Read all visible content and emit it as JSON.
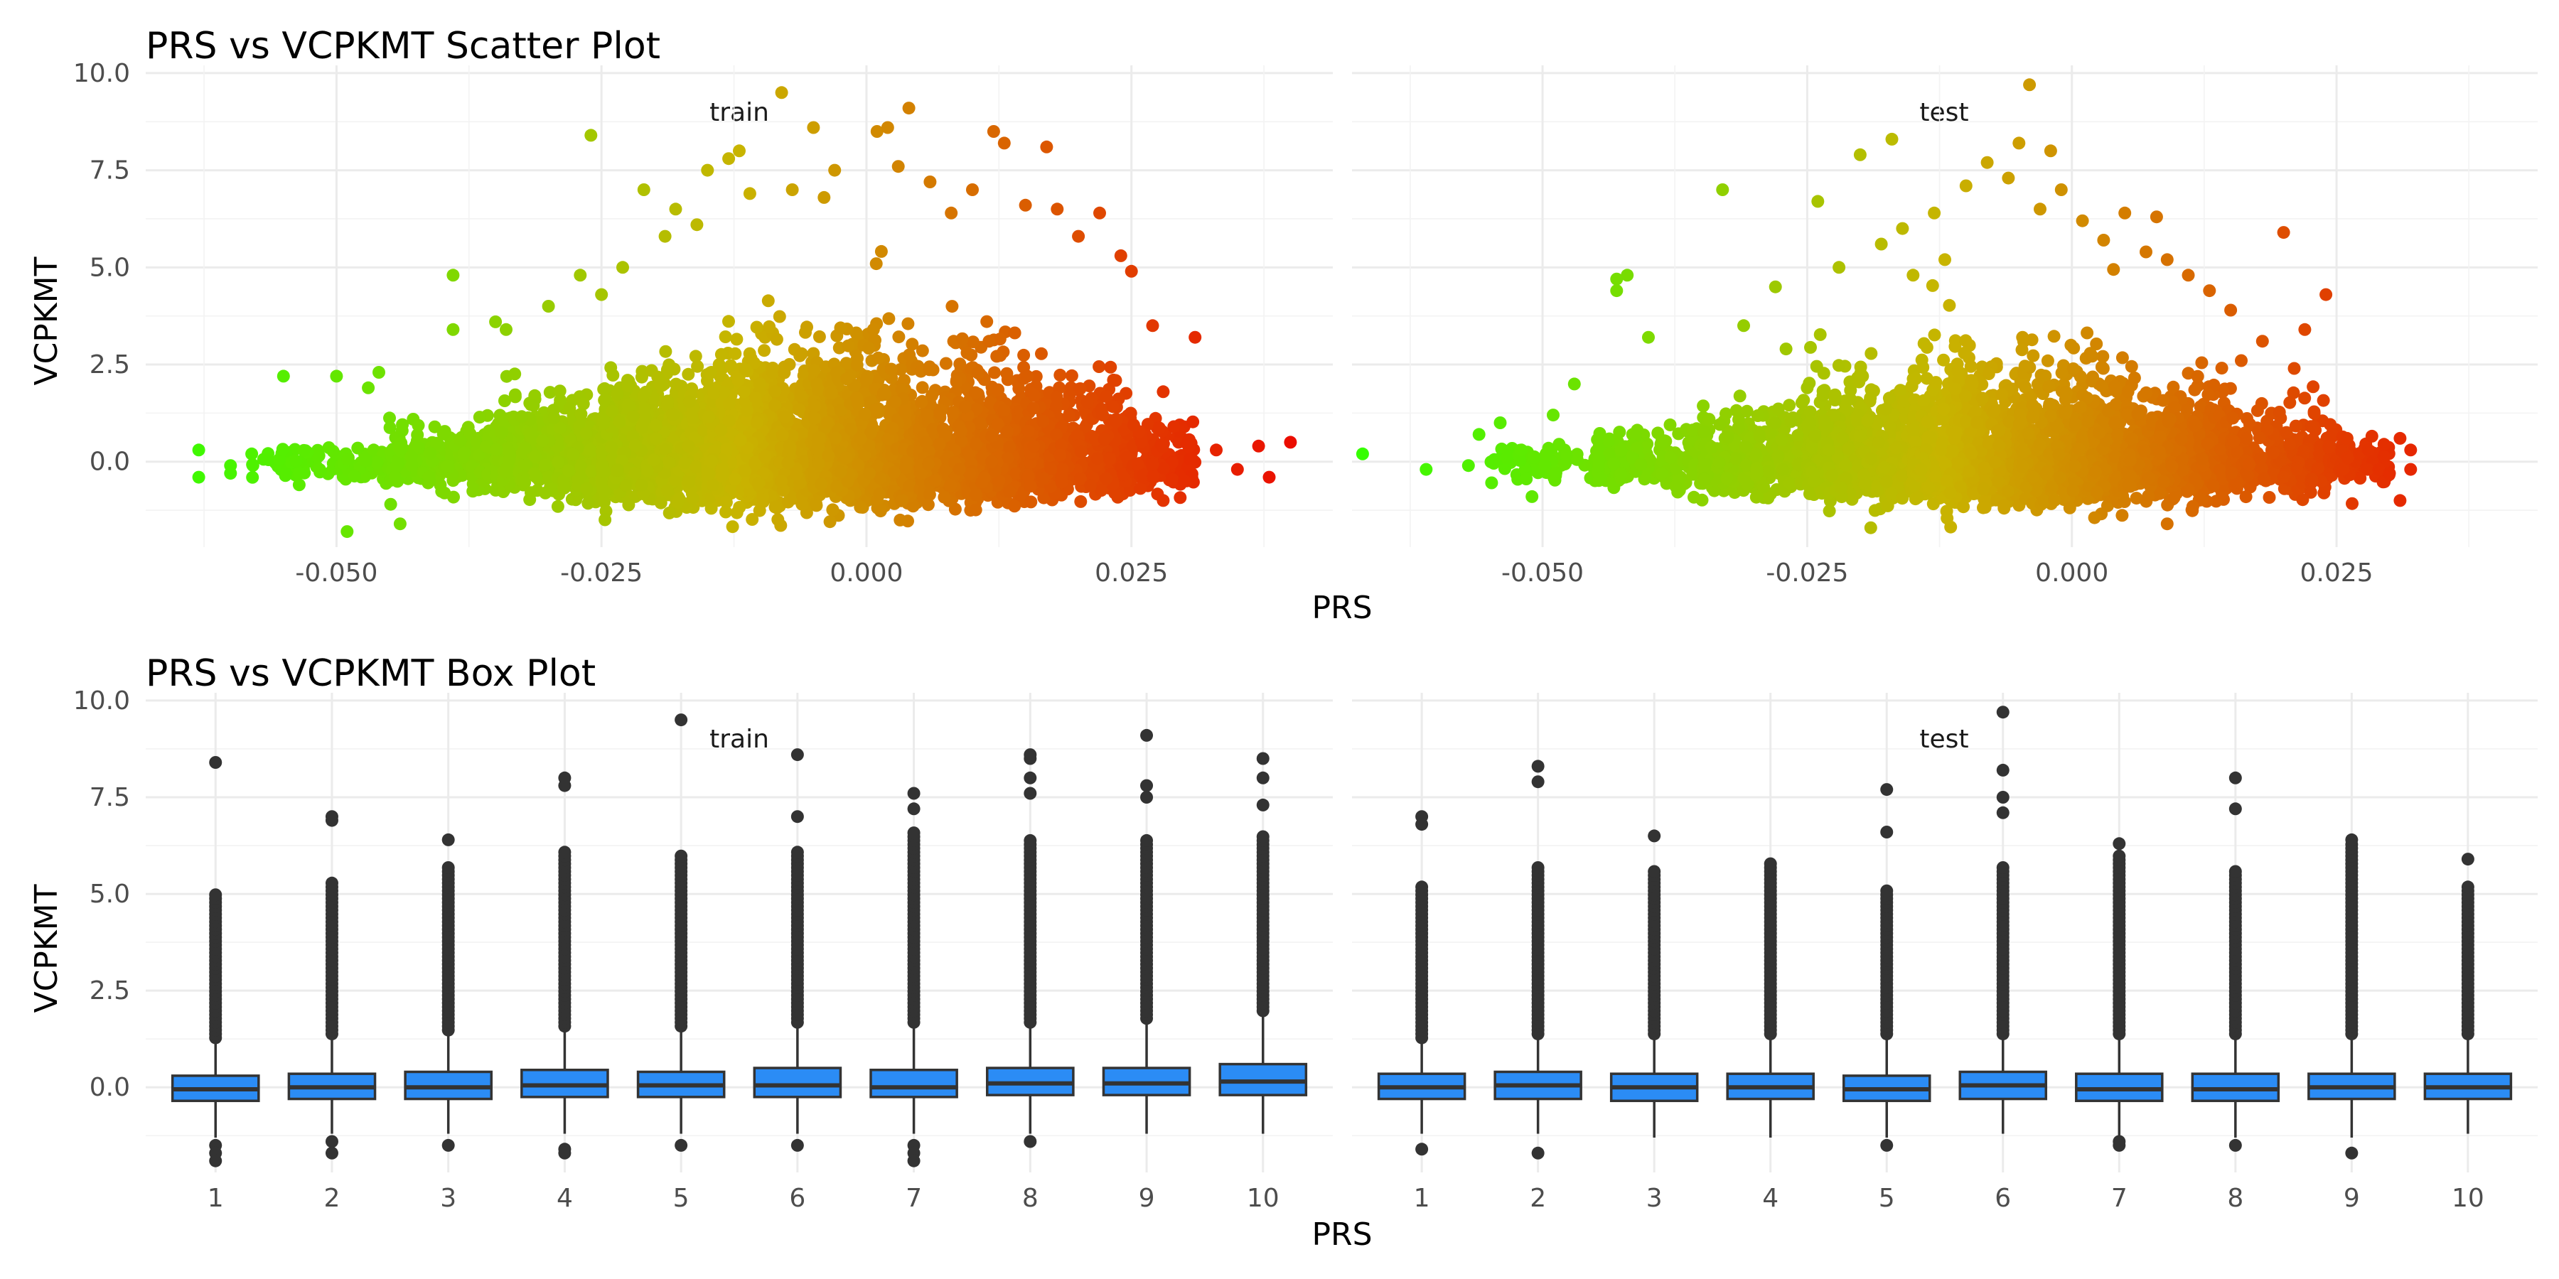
{
  "chart_data": [
    {
      "type": "scatter",
      "title": "PRS vs VCPKMT Scatter Plot",
      "xlabel": "PRS",
      "ylabel": "VCPKMT",
      "facets": [
        "train",
        "test"
      ],
      "xlim": [
        -0.068,
        0.044
      ],
      "ylim": [
        -2.2,
        10.2
      ],
      "x_ticks": [
        "-0.050",
        "-0.025",
        "0.000",
        "0.025"
      ],
      "x_tick_values": [
        -0.05,
        -0.025,
        0.0,
        0.025
      ],
      "y_ticks": [
        "0.0",
        "2.5",
        "5.0",
        "7.5",
        "10.0"
      ],
      "y_tick_values": [
        0,
        2.5,
        5,
        7.5,
        10
      ],
      "grid": true,
      "color_scale": {
        "low": "#33ff00",
        "mid": "#c8b400",
        "high": "#ee0000"
      },
      "panels": {
        "train": {
          "points": [
            [
              -0.063,
              0.3
            ],
            [
              -0.063,
              -0.4
            ],
            [
              -0.06,
              -0.1
            ],
            [
              -0.06,
              -0.3
            ],
            [
              -0.058,
              0.2
            ],
            [
              -0.055,
              2.2
            ],
            [
              -0.05,
              2.2
            ],
            [
              -0.047,
              1.9
            ],
            [
              -0.046,
              2.3
            ],
            [
              -0.049,
              -1.8
            ],
            [
              -0.044,
              -1.6
            ],
            [
              -0.039,
              4.8
            ],
            [
              -0.039,
              3.4
            ],
            [
              -0.035,
              3.6
            ],
            [
              -0.034,
              3.4
            ],
            [
              -0.03,
              4.0
            ],
            [
              -0.027,
              4.8
            ],
            [
              -0.026,
              8.4
            ],
            [
              -0.025,
              4.3
            ],
            [
              -0.023,
              5.0
            ],
            [
              -0.021,
              7.0
            ],
            [
              -0.019,
              5.8
            ],
            [
              -0.018,
              6.5
            ],
            [
              -0.016,
              6.1
            ],
            [
              -0.015,
              7.5
            ],
            [
              -0.013,
              7.8
            ],
            [
              -0.012,
              8.0
            ],
            [
              -0.011,
              6.9
            ],
            [
              -0.008,
              9.5
            ],
            [
              -0.007,
              7.0
            ],
            [
              -0.005,
              8.6
            ],
            [
              -0.004,
              6.8
            ],
            [
              -0.003,
              7.5
            ],
            [
              0.001,
              8.5
            ],
            [
              0.002,
              8.6
            ],
            [
              0.003,
              7.6
            ],
            [
              0.004,
              9.1
            ],
            [
              0.006,
              7.2
            ],
            [
              0.008,
              6.4
            ],
            [
              0.01,
              7.0
            ],
            [
              0.012,
              8.5
            ],
            [
              0.013,
              8.2
            ],
            [
              0.015,
              6.6
            ],
            [
              0.017,
              8.1
            ],
            [
              0.018,
              6.5
            ],
            [
              0.02,
              5.8
            ],
            [
              0.022,
              6.4
            ],
            [
              0.024,
              5.3
            ],
            [
              0.025,
              4.9
            ],
            [
              0.027,
              3.5
            ],
            [
              0.028,
              1.8
            ],
            [
              0.031,
              3.2
            ],
            [
              0.029,
              0.9
            ],
            [
              0.033,
              0.3
            ],
            [
              0.035,
              -0.2
            ],
            [
              0.037,
              0.4
            ],
            [
              0.04,
              0.5
            ],
            [
              0.038,
              -0.4
            ],
            [
              0.028,
              -1.0
            ],
            [
              0.03,
              -0.5
            ]
          ]
        },
        "test": {
          "points": [
            [
              -0.067,
              0.2
            ],
            [
              -0.061,
              -0.2
            ],
            [
              -0.057,
              -0.1
            ],
            [
              -0.056,
              0.7
            ],
            [
              -0.054,
              1.0
            ],
            [
              -0.052,
              0.3
            ],
            [
              -0.051,
              -0.9
            ],
            [
              -0.049,
              1.2
            ],
            [
              -0.047,
              2.0
            ],
            [
              -0.043,
              4.7
            ],
            [
              -0.042,
              4.8
            ],
            [
              -0.043,
              4.4
            ],
            [
              -0.04,
              3.2
            ],
            [
              -0.033,
              7.0
            ],
            [
              -0.031,
              3.5
            ],
            [
              -0.028,
              4.5
            ],
            [
              -0.027,
              2.9
            ],
            [
              -0.024,
              6.7
            ],
            [
              -0.025,
              1.9
            ],
            [
              -0.022,
              5.0
            ],
            [
              -0.02,
              7.9
            ],
            [
              -0.018,
              5.6
            ],
            [
              -0.017,
              8.3
            ],
            [
              -0.016,
              6.0
            ],
            [
              -0.015,
              4.8
            ],
            [
              -0.013,
              6.4
            ],
            [
              -0.012,
              5.2
            ],
            [
              -0.01,
              7.1
            ],
            [
              -0.008,
              7.7
            ],
            [
              -0.006,
              7.3
            ],
            [
              -0.005,
              8.2
            ],
            [
              -0.004,
              9.7
            ],
            [
              -0.003,
              6.5
            ],
            [
              -0.002,
              8.0
            ],
            [
              -0.001,
              7.0
            ],
            [
              0.001,
              6.2
            ],
            [
              0.003,
              5.7
            ],
            [
              0.005,
              6.4
            ],
            [
              0.007,
              5.4
            ],
            [
              0.008,
              6.3
            ],
            [
              0.009,
              5.2
            ],
            [
              0.011,
              4.8
            ],
            [
              0.013,
              4.4
            ],
            [
              0.015,
              3.9
            ],
            [
              0.016,
              2.6
            ],
            [
              0.018,
              3.1
            ],
            [
              0.02,
              5.9
            ],
            [
              0.021,
              2.4
            ],
            [
              0.022,
              3.4
            ],
            [
              0.024,
              4.3
            ],
            [
              0.026,
              0.6
            ],
            [
              0.028,
              0.3
            ],
            [
              0.029,
              -0.2
            ],
            [
              0.03,
              -0.3
            ],
            [
              0.031,
              0.6
            ],
            [
              0.032,
              0.3
            ],
            [
              0.032,
              -0.2
            ],
            [
              0.031,
              -1.0
            ],
            [
              0.009,
              -1.6
            ],
            [
              -0.019,
              -1.7
            ]
          ]
        }
      },
      "clouds": {
        "train": [
          {
            "from": -0.058,
            "to": -0.045,
            "n": 90,
            "up": 0.35,
            "down": 0.55
          },
          {
            "from": -0.045,
            "to": -0.035,
            "n": 260,
            "up": 0.75,
            "down": 0.7
          },
          {
            "from": -0.035,
            "to": -0.025,
            "n": 520,
            "up": 1.3,
            "down": 0.9
          },
          {
            "from": -0.025,
            "to": -0.015,
            "n": 850,
            "up": 1.9,
            "down": 1.0
          },
          {
            "from": -0.015,
            "to": -0.005,
            "n": 1050,
            "up": 2.4,
            "down": 1.1
          },
          {
            "from": -0.005,
            "to": 0.005,
            "n": 1000,
            "up": 2.6,
            "down": 1.1
          },
          {
            "from": 0.005,
            "to": 0.015,
            "n": 800,
            "up": 2.2,
            "down": 1.0
          },
          {
            "from": 0.015,
            "to": 0.025,
            "n": 520,
            "up": 1.8,
            "down": 0.9
          },
          {
            "from": 0.025,
            "to": 0.031,
            "n": 140,
            "up": 0.9,
            "down": 0.7
          }
        ],
        "test": [
          {
            "from": -0.055,
            "to": -0.045,
            "n": 70,
            "up": 0.4,
            "down": 0.6
          },
          {
            "from": -0.045,
            "to": -0.035,
            "n": 200,
            "up": 0.7,
            "down": 0.7
          },
          {
            "from": -0.035,
            "to": -0.025,
            "n": 380,
            "up": 1.1,
            "down": 0.85
          },
          {
            "from": -0.025,
            "to": -0.015,
            "n": 600,
            "up": 1.8,
            "down": 1.0
          },
          {
            "from": -0.015,
            "to": -0.005,
            "n": 720,
            "up": 2.3,
            "down": 1.1
          },
          {
            "from": -0.005,
            "to": 0.005,
            "n": 680,
            "up": 2.1,
            "down": 1.1
          },
          {
            "from": 0.005,
            "to": 0.015,
            "n": 520,
            "up": 1.8,
            "down": 1.0
          },
          {
            "from": 0.015,
            "to": 0.025,
            "n": 300,
            "up": 1.2,
            "down": 0.8
          },
          {
            "from": 0.025,
            "to": 0.03,
            "n": 60,
            "up": 0.5,
            "down": 0.5
          }
        ]
      }
    },
    {
      "type": "box",
      "title": "PRS vs VCPKMT Box Plot",
      "xlabel": "PRS",
      "ylabel": "VCPKMT",
      "facets": [
        "train",
        "test"
      ],
      "categories": [
        "1",
        "2",
        "3",
        "4",
        "5",
        "6",
        "7",
        "8",
        "9",
        "10"
      ],
      "ylim": [
        -2.2,
        10.2
      ],
      "y_ticks": [
        "0.0",
        "2.5",
        "5.0",
        "7.5",
        "10.0"
      ],
      "y_tick_values": [
        0,
        2.5,
        5,
        7.5,
        10
      ],
      "grid": true,
      "fill_color": "#2b8cf5",
      "outline_color": "#333333",
      "panels": {
        "train": [
          {
            "q1": -0.35,
            "median": -0.05,
            "q3": 0.3,
            "low": -1.3,
            "high": 1.2,
            "out_top": 5.0,
            "out_low": [
              -1.5,
              -1.7,
              -1.9
            ],
            "extra_high": [
              8.4
            ]
          },
          {
            "q1": -0.3,
            "median": 0.0,
            "q3": 0.35,
            "low": -1.2,
            "high": 1.3,
            "out_top": 5.3,
            "out_low": [
              -1.4,
              -1.7
            ],
            "extra_high": [
              6.9,
              7.0
            ]
          },
          {
            "q1": -0.3,
            "median": 0.0,
            "q3": 0.4,
            "low": -1.2,
            "high": 1.4,
            "out_top": 5.7,
            "out_low": [
              -1.5
            ],
            "extra_high": [
              6.4
            ]
          },
          {
            "q1": -0.25,
            "median": 0.05,
            "q3": 0.45,
            "low": -1.2,
            "high": 1.5,
            "out_top": 6.1,
            "out_low": [
              -1.6,
              -1.7
            ],
            "extra_high": [
              7.8,
              8.0
            ]
          },
          {
            "q1": -0.25,
            "median": 0.05,
            "q3": 0.4,
            "low": -1.2,
            "high": 1.5,
            "out_top": 6.0,
            "out_low": [
              -1.5
            ],
            "extra_high": [
              9.5
            ]
          },
          {
            "q1": -0.25,
            "median": 0.05,
            "q3": 0.5,
            "low": -1.2,
            "high": 1.6,
            "out_top": 6.1,
            "out_low": [
              -1.5
            ],
            "extra_high": [
              7.0,
              8.6
            ]
          },
          {
            "q1": -0.25,
            "median": 0.0,
            "q3": 0.45,
            "low": -1.2,
            "high": 1.6,
            "out_top": 6.6,
            "out_low": [
              -1.5,
              -1.7,
              -1.9
            ],
            "extra_high": [
              7.2,
              7.6
            ]
          },
          {
            "q1": -0.2,
            "median": 0.1,
            "q3": 0.5,
            "low": -1.2,
            "high": 1.6,
            "out_top": 6.4,
            "out_low": [
              -1.4
            ],
            "extra_high": [
              7.6,
              8.0,
              8.5,
              8.6
            ]
          },
          {
            "q1": -0.2,
            "median": 0.1,
            "q3": 0.5,
            "low": -1.2,
            "high": 1.7,
            "out_top": 6.4,
            "out_low": [],
            "extra_high": [
              7.5,
              7.8,
              9.1
            ]
          },
          {
            "q1": -0.2,
            "median": 0.15,
            "q3": 0.6,
            "low": -1.2,
            "high": 1.9,
            "out_top": 6.5,
            "out_low": [],
            "extra_high": [
              7.3,
              8.0,
              8.5
            ]
          }
        ],
        "test": [
          {
            "q1": -0.3,
            "median": 0.0,
            "q3": 0.35,
            "low": -1.2,
            "high": 1.2,
            "out_top": 5.2,
            "out_low": [
              -1.6
            ],
            "extra_high": [
              6.8,
              7.0
            ]
          },
          {
            "q1": -0.3,
            "median": 0.05,
            "q3": 0.4,
            "low": -1.2,
            "high": 1.3,
            "out_top": 5.7,
            "out_low": [
              -1.7
            ],
            "extra_high": [
              7.9,
              8.3
            ]
          },
          {
            "q1": -0.35,
            "median": 0.0,
            "q3": 0.35,
            "low": -1.3,
            "high": 1.3,
            "out_top": 5.6,
            "out_low": [],
            "extra_high": [
              6.5
            ]
          },
          {
            "q1": -0.3,
            "median": 0.0,
            "q3": 0.35,
            "low": -1.3,
            "high": 1.3,
            "out_top": 5.8,
            "out_low": [],
            "extra_high": []
          },
          {
            "q1": -0.35,
            "median": -0.05,
            "q3": 0.3,
            "low": -1.3,
            "high": 1.3,
            "out_top": 5.1,
            "out_low": [
              -1.5
            ],
            "extra_high": [
              6.6,
              7.7
            ]
          },
          {
            "q1": -0.3,
            "median": 0.05,
            "q3": 0.4,
            "low": -1.2,
            "high": 1.3,
            "out_top": 5.7,
            "out_low": [],
            "extra_high": [
              7.1,
              7.5,
              8.2,
              9.7
            ]
          },
          {
            "q1": -0.35,
            "median": -0.05,
            "q3": 0.35,
            "low": -1.3,
            "high": 1.3,
            "out_top": 6.0,
            "out_low": [
              -1.4,
              -1.5
            ],
            "extra_high": [
              6.3
            ]
          },
          {
            "q1": -0.35,
            "median": -0.05,
            "q3": 0.35,
            "low": -1.3,
            "high": 1.3,
            "out_top": 5.6,
            "out_low": [
              -1.5
            ],
            "extra_high": [
              7.2,
              8.0
            ]
          },
          {
            "q1": -0.3,
            "median": 0.0,
            "q3": 0.35,
            "low": -1.3,
            "high": 1.3,
            "out_top": 6.3,
            "out_low": [
              -1.7
            ],
            "extra_high": [
              6.4
            ]
          },
          {
            "q1": -0.3,
            "median": 0.0,
            "q3": 0.35,
            "low": -1.2,
            "high": 1.3,
            "out_top": 5.2,
            "out_low": [],
            "extra_high": [
              5.9
            ]
          }
        ]
      }
    }
  ]
}
